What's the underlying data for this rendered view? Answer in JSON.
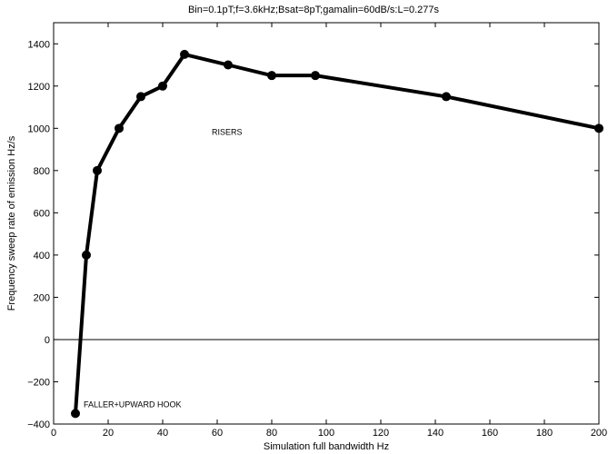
{
  "chart_data": {
    "type": "line",
    "title": "Bin=0.1pT;f=3.6kHz;Bsat=8pT;gamalin=60dB/s:L=0.277s",
    "xlabel": "Simulation full bandwidth Hz",
    "ylabel": "Frequency sweep rate of emission Hz/s",
    "xlim": [
      0,
      200
    ],
    "ylim": [
      -400,
      1500
    ],
    "xticks": [
      0,
      20,
      40,
      60,
      80,
      100,
      120,
      140,
      160,
      180,
      200
    ],
    "yticks": [
      -400,
      -200,
      0,
      200,
      400,
      600,
      800,
      1000,
      1200,
      1400
    ],
    "xtick_labels": [
      "0",
      "20",
      "40",
      "60",
      "80",
      "100",
      "120",
      "140",
      "160",
      "180",
      "200"
    ],
    "ytick_labels": [
      "−400",
      "−200",
      "0",
      "200",
      "400",
      "600",
      "800",
      "1000",
      "1200",
      "1400"
    ],
    "grid": false,
    "zero_line": true,
    "series": [
      {
        "color": "#000000",
        "marker": "circle",
        "x": [
          8,
          12,
          16,
          24,
          32,
          40,
          48,
          64,
          80,
          96,
          144,
          200
        ],
        "y": [
          -350,
          400,
          800,
          1000,
          1150,
          1200,
          1350,
          1300,
          1250,
          1250,
          1150,
          1000
        ]
      }
    ],
    "annotations": [
      {
        "text": "RISERS",
        "x": 58,
        "y": 970
      },
      {
        "text": "FALLER+UPWARD HOOK",
        "x": 11,
        "y": -320
      }
    ]
  }
}
